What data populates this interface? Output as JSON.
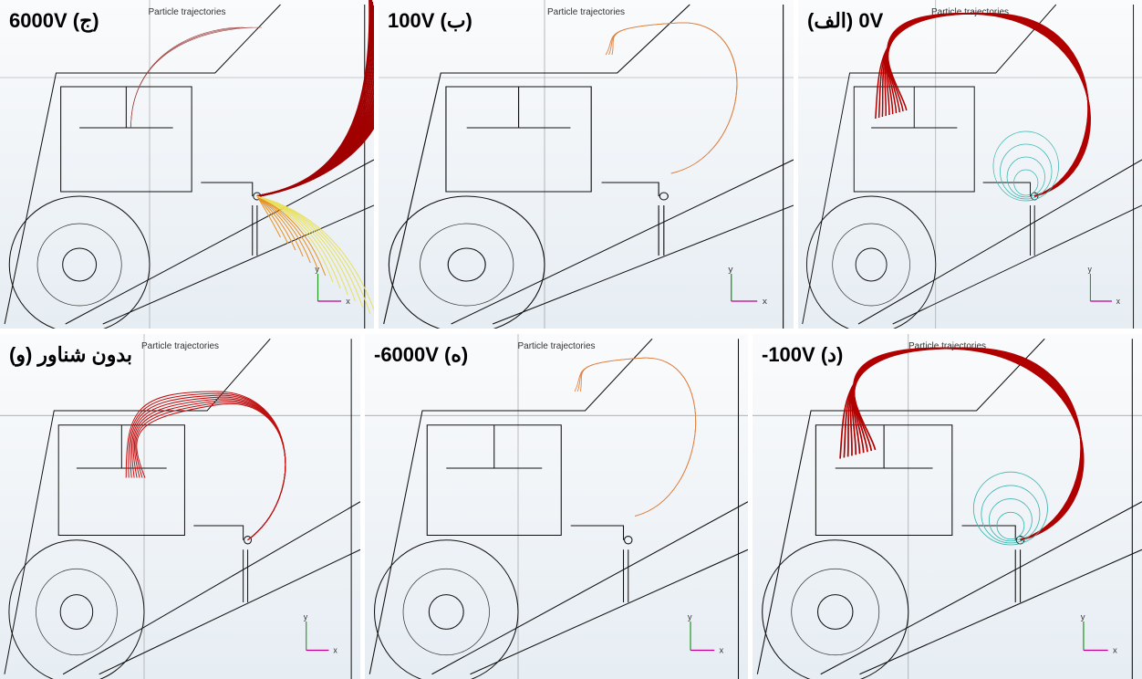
{
  "panels": [
    {
      "label": "6000V (ج)",
      "title": "Particle trajectories",
      "axis_y": "y",
      "axis_x": "x"
    },
    {
      "label": "100V (ب)",
      "title": "Particle trajectories",
      "axis_y": "y",
      "axis_x": "x"
    },
    {
      "label": "(الف) 0V",
      "title": "Particle trajectories",
      "axis_y": "y",
      "axis_x": "x"
    },
    {
      "label": "(و) بدون شناور",
      "title": "Particle trajectories",
      "axis_y": "y",
      "axis_x": "x"
    },
    {
      "label": "-6000V (ه)",
      "title": "Particle trajectories",
      "axis_y": "y",
      "axis_x": "x"
    },
    {
      "label": "-100V (د)",
      "title": "Particle trajectories",
      "axis_y": "y",
      "axis_x": "x"
    }
  ]
}
